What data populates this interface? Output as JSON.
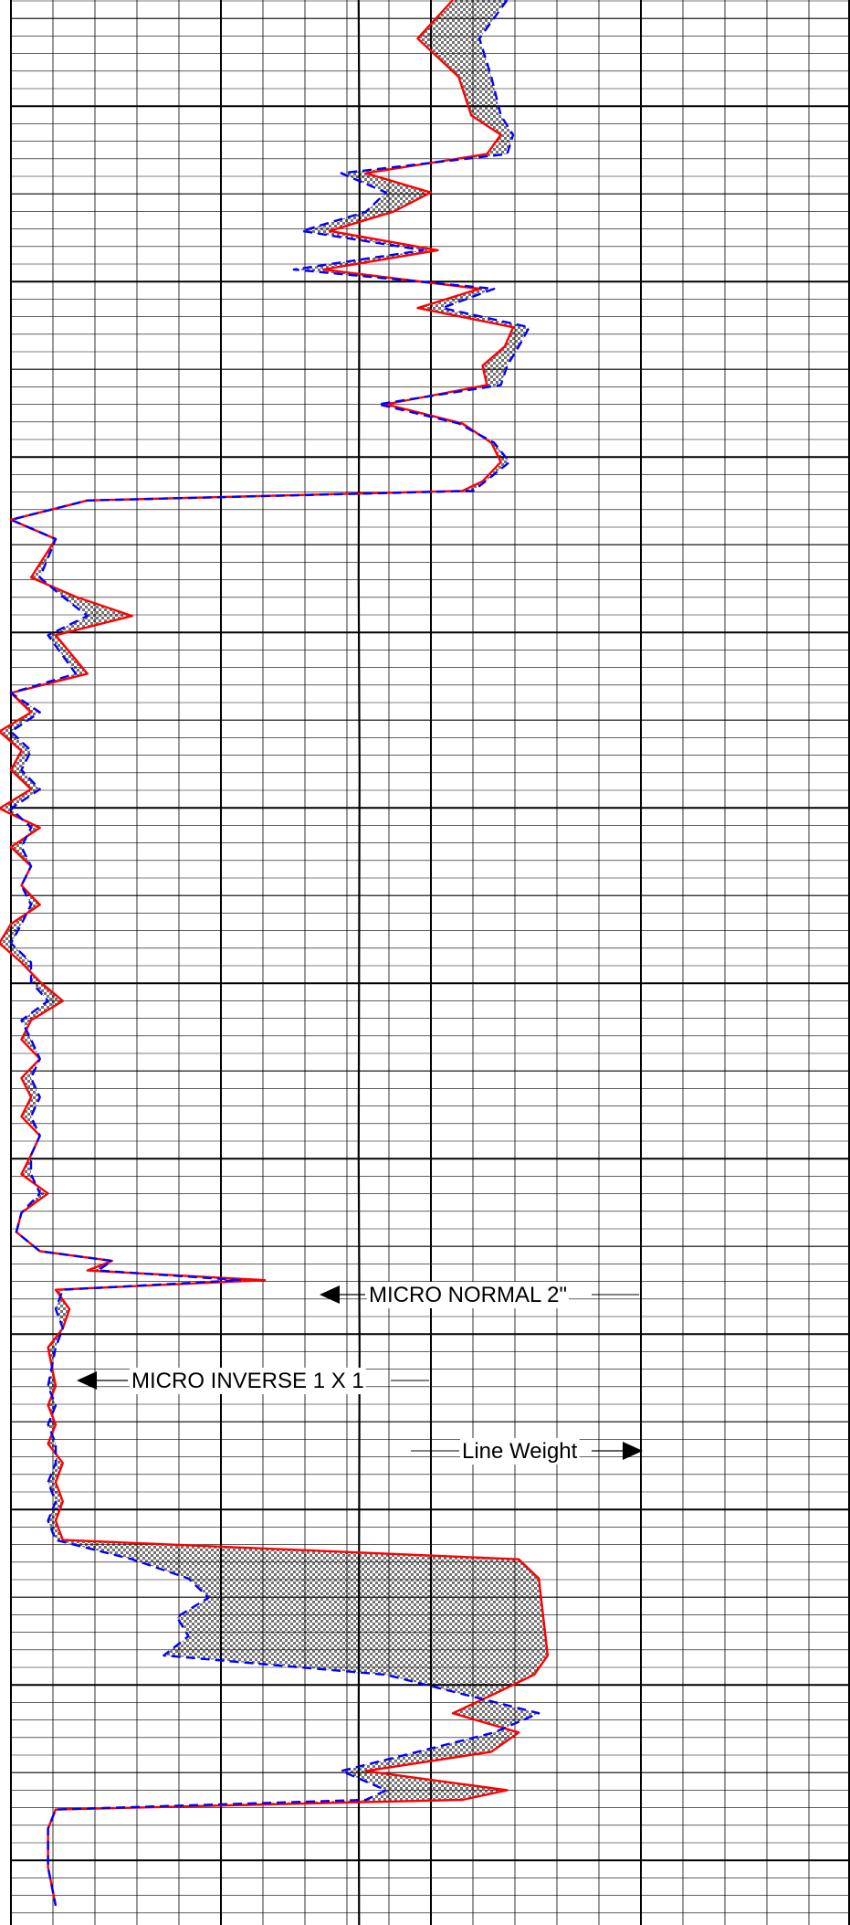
{
  "chart_data": {
    "type": "line",
    "title": "",
    "grid": true,
    "colors": {
      "micro_normal": "#ff0000",
      "micro_inverse": "#0000ff",
      "line_weight": "#000000",
      "grid": "#000000",
      "separation_fill": "checkerboard"
    },
    "annotations": {
      "micro_normal": "MICRO NORMAL 2\"",
      "micro_inverse": "MICRO INVERSE 1 X 1",
      "line_weight": "Line Weight"
    },
    "series": [
      {
        "name": "MICRO NORMAL 2\"",
        "style": "solid",
        "points": [
          [
            0.0,
            55
          ],
          [
            0.02,
            40
          ],
          [
            0.04,
            58
          ],
          [
            0.06,
            65
          ],
          [
            0.07,
            85
          ],
          [
            0.08,
            75
          ],
          [
            0.09,
            25
          ],
          [
            0.1,
            45
          ],
          [
            0.11,
            32
          ],
          [
            0.12,
            18
          ],
          [
            0.13,
            48
          ],
          [
            0.14,
            17
          ],
          [
            0.15,
            70
          ],
          [
            0.16,
            40
          ],
          [
            0.17,
            95
          ],
          [
            0.18,
            88
          ],
          [
            0.19,
            72
          ],
          [
            0.2,
            75
          ],
          [
            0.21,
            30
          ],
          [
            0.22,
            60
          ],
          [
            0.23,
            78
          ],
          [
            0.24,
            85
          ],
          [
            0.25,
            72
          ],
          [
            0.255,
            60
          ],
          [
            0.26,
            2
          ],
          [
            0.27,
            1
          ],
          [
            0.28,
            1.5
          ],
          [
            0.3,
            1.2
          ],
          [
            0.31,
            1.8
          ],
          [
            0.32,
            3
          ],
          [
            0.33,
            1.5
          ],
          [
            0.35,
            2
          ],
          [
            0.36,
            1
          ],
          [
            0.37,
            1.2
          ],
          [
            0.38,
            0.9
          ],
          [
            0.39,
            1.1
          ],
          [
            0.4,
            1
          ],
          [
            0.41,
            1.2
          ],
          [
            0.42,
            0.9
          ],
          [
            0.43,
            1.3
          ],
          [
            0.44,
            1
          ],
          [
            0.45,
            1.2
          ],
          [
            0.46,
            1.1
          ],
          [
            0.47,
            1.3
          ],
          [
            0.48,
            1
          ],
          [
            0.49,
            0.9
          ],
          [
            0.5,
            1.1
          ],
          [
            0.51,
            1.3
          ],
          [
            0.52,
            1.6
          ],
          [
            0.53,
            1.2
          ],
          [
            0.54,
            1.1
          ],
          [
            0.55,
            1.3
          ],
          [
            0.56,
            1.1
          ],
          [
            0.57,
            1.2
          ],
          [
            0.58,
            1.1
          ],
          [
            0.59,
            1.3
          ],
          [
            0.6,
            1.2
          ],
          [
            0.61,
            1.1
          ],
          [
            0.62,
            1.4
          ],
          [
            0.63,
            1.1
          ],
          [
            0.64,
            1.05
          ],
          [
            0.65,
            1.3
          ],
          [
            0.655,
            2.5
          ],
          [
            0.66,
            2
          ],
          [
            0.665,
            10
          ],
          [
            0.67,
            1.5
          ],
          [
            0.68,
            1.7
          ],
          [
            0.69,
            1.6
          ],
          [
            0.7,
            1.4
          ],
          [
            0.72,
            1.5
          ],
          [
            0.73,
            1.4
          ],
          [
            0.74,
            1.5
          ],
          [
            0.75,
            1.4
          ],
          [
            0.76,
            1.6
          ],
          [
            0.77,
            1.5
          ],
          [
            0.78,
            1.6
          ],
          [
            0.79,
            1.5
          ],
          [
            0.8,
            1.6
          ],
          [
            0.81,
            100
          ],
          [
            0.82,
            120
          ],
          [
            0.86,
            130
          ],
          [
            0.87,
            115
          ],
          [
            0.88,
            80
          ],
          [
            0.89,
            55
          ],
          [
            0.9,
            100
          ],
          [
            0.91,
            78
          ],
          [
            0.92,
            25
          ],
          [
            0.93,
            90
          ],
          [
            0.935,
            60
          ],
          [
            0.94,
            1.5
          ],
          [
            0.95,
            1.4
          ],
          [
            0.97,
            1.4
          ],
          [
            0.99,
            1.5
          ]
        ]
      },
      {
        "name": "MICRO INVERSE 1 X 1",
        "style": "dashed",
        "points": [
          [
            0.0,
            90
          ],
          [
            0.02,
            70
          ],
          [
            0.04,
            78
          ],
          [
            0.06,
            85
          ],
          [
            0.07,
            95
          ],
          [
            0.08,
            90
          ],
          [
            0.09,
            20
          ],
          [
            0.1,
            30
          ],
          [
            0.11,
            25
          ],
          [
            0.12,
            14
          ],
          [
            0.13,
            42
          ],
          [
            0.14,
            13
          ],
          [
            0.15,
            80
          ],
          [
            0.16,
            50
          ],
          [
            0.17,
            110
          ],
          [
            0.18,
            100
          ],
          [
            0.19,
            90
          ],
          [
            0.2,
            85
          ],
          [
            0.21,
            28
          ],
          [
            0.22,
            58
          ],
          [
            0.23,
            80
          ],
          [
            0.24,
            92
          ],
          [
            0.25,
            74
          ],
          [
            0.255,
            66
          ],
          [
            0.26,
            2
          ],
          [
            0.27,
            1
          ],
          [
            0.28,
            1.5
          ],
          [
            0.3,
            1.3
          ],
          [
            0.31,
            1.6
          ],
          [
            0.32,
            2
          ],
          [
            0.33,
            1.4
          ],
          [
            0.35,
            1.8
          ],
          [
            0.36,
            1
          ],
          [
            0.37,
            1.3
          ],
          [
            0.38,
            1
          ],
          [
            0.39,
            1.2
          ],
          [
            0.4,
            1.1
          ],
          [
            0.41,
            1.3
          ],
          [
            0.42,
            1
          ],
          [
            0.43,
            1.2
          ],
          [
            0.44,
            1.1
          ],
          [
            0.45,
            1.2
          ],
          [
            0.46,
            1.1
          ],
          [
            0.47,
            1.2
          ],
          [
            0.48,
            1.1
          ],
          [
            0.49,
            1
          ],
          [
            0.5,
            1.2
          ],
          [
            0.51,
            1.2
          ],
          [
            0.52,
            1.4
          ],
          [
            0.53,
            1.1
          ],
          [
            0.54,
            1.2
          ],
          [
            0.55,
            1.3
          ],
          [
            0.56,
            1.2
          ],
          [
            0.57,
            1.3
          ],
          [
            0.58,
            1.2
          ],
          [
            0.59,
            1.3
          ],
          [
            0.6,
            1.2
          ],
          [
            0.61,
            1.2
          ],
          [
            0.62,
            1.3
          ],
          [
            0.63,
            1.1
          ],
          [
            0.64,
            1.05
          ],
          [
            0.65,
            1.3
          ],
          [
            0.655,
            2.5
          ],
          [
            0.66,
            2.2
          ],
          [
            0.665,
            8
          ],
          [
            0.67,
            1.6
          ],
          [
            0.68,
            1.5
          ],
          [
            0.69,
            1.6
          ],
          [
            0.7,
            1.5
          ],
          [
            0.72,
            1.4
          ],
          [
            0.73,
            1.5
          ],
          [
            0.74,
            1.4
          ],
          [
            0.75,
            1.5
          ],
          [
            0.76,
            1.5
          ],
          [
            0.77,
            1.4
          ],
          [
            0.78,
            1.5
          ],
          [
            0.79,
            1.4
          ],
          [
            0.8,
            1.5
          ],
          [
            0.81,
            3
          ],
          [
            0.82,
            5
          ],
          [
            0.83,
            6
          ],
          [
            0.84,
            4.5
          ],
          [
            0.85,
            5
          ],
          [
            0.86,
            4
          ],
          [
            0.87,
            30
          ],
          [
            0.88,
            60
          ],
          [
            0.89,
            120
          ],
          [
            0.9,
            80
          ],
          [
            0.91,
            40
          ],
          [
            0.92,
            20
          ],
          [
            0.93,
            30
          ],
          [
            0.935,
            25
          ],
          [
            0.94,
            1.5
          ],
          [
            0.95,
            1.4
          ],
          [
            0.97,
            1.4
          ],
          [
            0.99,
            1.5
          ]
        ]
      },
      {
        "name": "Line Weight",
        "style": "solid",
        "points": [
          [
            0.0,
            23.4
          ],
          [
            0.1,
            23.6
          ],
          [
            0.2,
            23.5
          ],
          [
            0.3,
            23.4
          ],
          [
            0.4,
            23.6
          ],
          [
            0.5,
            23.5
          ],
          [
            0.6,
            23.4
          ],
          [
            0.7,
            23.6
          ],
          [
            0.8,
            23.5
          ],
          [
            0.9,
            23.4
          ],
          [
            1.0,
            23.5
          ]
        ]
      }
    ]
  }
}
